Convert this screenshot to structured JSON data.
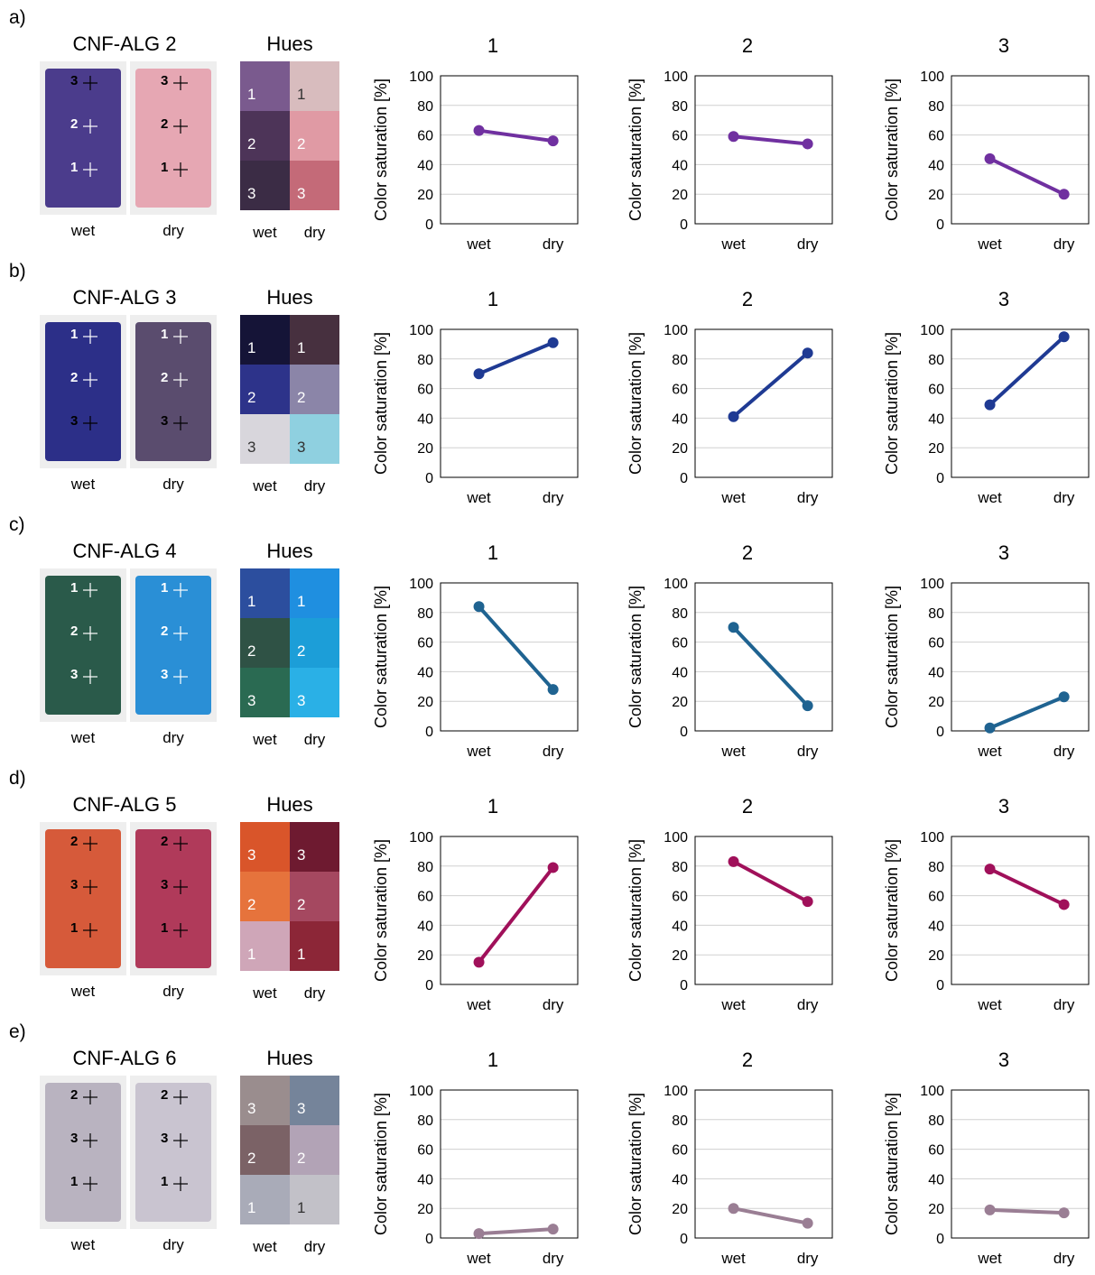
{
  "panels": [
    {
      "label": "a)",
      "title": "CNF-ALG 2",
      "photo_labels": {
        "wet": "wet",
        "dry": "dry"
      },
      "photo_markers": {
        "wet": [
          {
            "n": "3",
            "color": "#000000"
          },
          {
            "n": "2",
            "color": "#ffffff"
          },
          {
            "n": "1",
            "color": "#ffffff"
          }
        ],
        "dry": [
          {
            "n": "3",
            "color": "#000000"
          },
          {
            "n": "2",
            "color": "#000000"
          },
          {
            "n": "1",
            "color": "#000000"
          }
        ]
      },
      "photo_colors": {
        "wet": "#4b3c8c",
        "dry": "#e6a7b3"
      },
      "hues": {
        "title": "Hues",
        "col_labels": [
          "wet",
          "dry"
        ],
        "rows": [
          {
            "wet": {
              "label": "1",
              "color": "#7a5a8e"
            },
            "dry": {
              "label": "1",
              "color": "#d8bcbe"
            }
          },
          {
            "wet": {
              "label": "2",
              "color": "#4d3458"
            },
            "dry": {
              "label": "2",
              "color": "#e09aa4"
            }
          },
          {
            "wet": {
              "label": "3",
              "color": "#3b2c45"
            },
            "dry": {
              "label": "3",
              "color": "#c46a78"
            }
          }
        ]
      }
    },
    {
      "label": "b)",
      "title": "CNF-ALG 3",
      "photo_labels": {
        "wet": "wet",
        "dry": "dry"
      },
      "photo_markers": {
        "wet": [
          {
            "n": "1",
            "color": "#ffffff"
          },
          {
            "n": "2",
            "color": "#ffffff"
          },
          {
            "n": "3",
            "color": "#000000"
          }
        ],
        "dry": [
          {
            "n": "1",
            "color": "#ffffff"
          },
          {
            "n": "2",
            "color": "#ffffff"
          },
          {
            "n": "3",
            "color": "#000000"
          }
        ]
      },
      "photo_colors": {
        "wet": "#2c2f88",
        "dry": "#5a4c6e"
      },
      "hues": {
        "title": "Hues",
        "col_labels": [
          "wet",
          "dry"
        ],
        "rows": [
          {
            "wet": {
              "label": "1",
              "color": "#151437"
            },
            "dry": {
              "label": "1",
              "color": "#47303f"
            }
          },
          {
            "wet": {
              "label": "2",
              "color": "#2d338a"
            },
            "dry": {
              "label": "2",
              "color": "#8b85a8"
            }
          },
          {
            "wet": {
              "label": "3",
              "color": "#d8d6dc"
            },
            "dry": {
              "label": "3",
              "color": "#8fd0e0"
            }
          }
        ]
      }
    },
    {
      "label": "c)",
      "title": "CNF-ALG 4",
      "photo_labels": {
        "wet": "wet",
        "dry": "dry"
      },
      "photo_markers": {
        "wet": [
          {
            "n": "1",
            "color": "#ffffff"
          },
          {
            "n": "2",
            "color": "#ffffff"
          },
          {
            "n": "3",
            "color": "#ffffff"
          }
        ],
        "dry": [
          {
            "n": "1",
            "color": "#ffffff"
          },
          {
            "n": "2",
            "color": "#ffffff"
          },
          {
            "n": "3",
            "color": "#ffffff"
          }
        ]
      },
      "photo_colors": {
        "wet": "#2a5a4a",
        "dry": "#2a8fd6"
      },
      "hues": {
        "title": "Hues",
        "col_labels": [
          "wet",
          "dry"
        ],
        "rows": [
          {
            "wet": {
              "label": "1",
              "color": "#2c4e9e"
            },
            "dry": {
              "label": "1",
              "color": "#1f8fe0"
            }
          },
          {
            "wet": {
              "label": "2",
              "color": "#2f5245"
            },
            "dry": {
              "label": "2",
              "color": "#1c9ed8"
            }
          },
          {
            "wet": {
              "label": "3",
              "color": "#2a6a52"
            },
            "dry": {
              "label": "3",
              "color": "#2ab0e6"
            }
          }
        ]
      }
    },
    {
      "label": "d)",
      "title": "CNF-ALG 5",
      "photo_labels": {
        "wet": "wet",
        "dry": "dry"
      },
      "photo_markers": {
        "wet": [
          {
            "n": "2",
            "color": "#000000"
          },
          {
            "n": "3",
            "color": "#000000"
          },
          {
            "n": "1",
            "color": "#000000"
          }
        ],
        "dry": [
          {
            "n": "2",
            "color": "#000000"
          },
          {
            "n": "3",
            "color": "#000000"
          },
          {
            "n": "1",
            "color": "#000000"
          }
        ]
      },
      "photo_colors": {
        "wet": "#d65a3a",
        "dry": "#b03a5a"
      },
      "hues": {
        "title": "Hues",
        "col_labels": [
          "wet",
          "dry"
        ],
        "rows": [
          {
            "wet": {
              "label": "3",
              "color": "#d9552a"
            },
            "dry": {
              "label": "3",
              "color": "#6e1a30"
            }
          },
          {
            "wet": {
              "label": "2",
              "color": "#e6733c"
            },
            "dry": {
              "label": "2",
              "color": "#a54860"
            }
          },
          {
            "wet": {
              "label": "1",
              "color": "#cfa6b8"
            },
            "dry": {
              "label": "1",
              "color": "#8c2637"
            }
          }
        ]
      }
    },
    {
      "label": "e)",
      "title": "CNF-ALG 6",
      "photo_labels": {
        "wet": "wet",
        "dry": "dry"
      },
      "photo_markers": {
        "wet": [
          {
            "n": "2",
            "color": "#000000"
          },
          {
            "n": "3",
            "color": "#000000"
          },
          {
            "n": "1",
            "color": "#000000"
          }
        ],
        "dry": [
          {
            "n": "2",
            "color": "#000000"
          },
          {
            "n": "3",
            "color": "#000000"
          },
          {
            "n": "1",
            "color": "#000000"
          }
        ]
      },
      "photo_colors": {
        "wet": "#b9b3c0",
        "dry": "#c9c4d0"
      },
      "hues": {
        "title": "Hues",
        "col_labels": [
          "wet",
          "dry"
        ],
        "rows": [
          {
            "wet": {
              "label": "3",
              "color": "#9a8d8e"
            },
            "dry": {
              "label": "3",
              "color": "#75849a"
            }
          },
          {
            "wet": {
              "label": "2",
              "color": "#7b6266"
            },
            "dry": {
              "label": "2",
              "color": "#b2a3b6"
            }
          },
          {
            "wet": {
              "label": "1",
              "color": "#a9abb8"
            },
            "dry": {
              "label": "1",
              "color": "#c2c1c8"
            }
          }
        ]
      }
    }
  ],
  "chart_data": [
    {
      "type": "line",
      "panel": "a)",
      "title": "1",
      "ylabel": "Color saturation [%]",
      "xlabel": "",
      "categories": [
        "wet",
        "dry"
      ],
      "values": [
        63,
        56
      ],
      "ylim": [
        0,
        100
      ],
      "yticks": [
        0,
        20,
        40,
        60,
        80,
        100
      ],
      "grid": true,
      "color": "#7030a0"
    },
    {
      "type": "line",
      "panel": "a)",
      "title": "2",
      "ylabel": "Color saturation [%]",
      "xlabel": "",
      "categories": [
        "wet",
        "dry"
      ],
      "values": [
        59,
        54
      ],
      "ylim": [
        0,
        100
      ],
      "yticks": [
        0,
        20,
        40,
        60,
        80,
        100
      ],
      "grid": true,
      "color": "#7030a0"
    },
    {
      "type": "line",
      "panel": "a)",
      "title": "3",
      "ylabel": "Color saturation [%]",
      "xlabel": "",
      "categories": [
        "wet",
        "dry"
      ],
      "values": [
        44,
        20
      ],
      "ylim": [
        0,
        100
      ],
      "yticks": [
        0,
        20,
        40,
        60,
        80,
        100
      ],
      "grid": true,
      "color": "#7030a0"
    },
    {
      "type": "line",
      "panel": "b)",
      "title": "1",
      "ylabel": "Color saturation [%]",
      "xlabel": "",
      "categories": [
        "wet",
        "dry"
      ],
      "values": [
        70,
        91
      ],
      "ylim": [
        0,
        100
      ],
      "yticks": [
        0,
        20,
        40,
        60,
        80,
        100
      ],
      "grid": true,
      "color": "#1f3a93"
    },
    {
      "type": "line",
      "panel": "b)",
      "title": "2",
      "ylabel": "Color saturation [%]",
      "xlabel": "",
      "categories": [
        "wet",
        "dry"
      ],
      "values": [
        41,
        84
      ],
      "ylim": [
        0,
        100
      ],
      "yticks": [
        0,
        20,
        40,
        60,
        80,
        100
      ],
      "grid": true,
      "color": "#1f3a93"
    },
    {
      "type": "line",
      "panel": "b)",
      "title": "3",
      "ylabel": "Color saturation [%]",
      "xlabel": "",
      "categories": [
        "wet",
        "dry"
      ],
      "values": [
        49,
        95
      ],
      "ylim": [
        0,
        100
      ],
      "yticks": [
        0,
        20,
        40,
        60,
        80,
        100
      ],
      "grid": true,
      "color": "#1f3a93"
    },
    {
      "type": "line",
      "panel": "c)",
      "title": "1",
      "ylabel": "Color saturation [%]",
      "xlabel": "",
      "categories": [
        "wet",
        "dry"
      ],
      "values": [
        84,
        28
      ],
      "ylim": [
        0,
        100
      ],
      "yticks": [
        0,
        20,
        40,
        60,
        80,
        100
      ],
      "grid": true,
      "color": "#1f6391"
    },
    {
      "type": "line",
      "panel": "c)",
      "title": "2",
      "ylabel": "Color saturation [%]",
      "xlabel": "",
      "categories": [
        "wet",
        "dry"
      ],
      "values": [
        70,
        17
      ],
      "ylim": [
        0,
        100
      ],
      "yticks": [
        0,
        20,
        40,
        60,
        80,
        100
      ],
      "grid": true,
      "color": "#1f6391"
    },
    {
      "type": "line",
      "panel": "c)",
      "title": "3",
      "ylabel": "Color saturation [%]",
      "xlabel": "",
      "categories": [
        "wet",
        "dry"
      ],
      "values": [
        2,
        23
      ],
      "ylim": [
        0,
        100
      ],
      "yticks": [
        0,
        20,
        40,
        60,
        80,
        100
      ],
      "grid": true,
      "color": "#1f6391"
    },
    {
      "type": "line",
      "panel": "d)",
      "title": "1",
      "ylabel": "Color saturation [%]",
      "xlabel": "",
      "categories": [
        "wet",
        "dry"
      ],
      "values": [
        15,
        79
      ],
      "ylim": [
        0,
        100
      ],
      "yticks": [
        0,
        20,
        40,
        60,
        80,
        100
      ],
      "grid": true,
      "color": "#a0105a"
    },
    {
      "type": "line",
      "panel": "d)",
      "title": "2",
      "ylabel": "Color saturation [%]",
      "xlabel": "",
      "categories": [
        "wet",
        "dry"
      ],
      "values": [
        83,
        56
      ],
      "ylim": [
        0,
        100
      ],
      "yticks": [
        0,
        20,
        40,
        60,
        80,
        100
      ],
      "grid": true,
      "color": "#a0105a"
    },
    {
      "type": "line",
      "panel": "d)",
      "title": "3",
      "ylabel": "Color saturation [%]",
      "xlabel": "",
      "categories": [
        "wet",
        "dry"
      ],
      "values": [
        78,
        54
      ],
      "ylim": [
        0,
        100
      ],
      "yticks": [
        0,
        20,
        40,
        60,
        80,
        100
      ],
      "grid": true,
      "color": "#a0105a"
    },
    {
      "type": "line",
      "panel": "e)",
      "title": "1",
      "ylabel": "Color saturation [%]",
      "xlabel": "",
      "categories": [
        "wet",
        "dry"
      ],
      "values": [
        3,
        6
      ],
      "ylim": [
        0,
        100
      ],
      "yticks": [
        0,
        20,
        40,
        60,
        80,
        100
      ],
      "grid": true,
      "color": "#9a7e94"
    },
    {
      "type": "line",
      "panel": "e)",
      "title": "2",
      "ylabel": "Color saturation [%]",
      "xlabel": "",
      "categories": [
        "wet",
        "dry"
      ],
      "values": [
        20,
        10
      ],
      "ylim": [
        0,
        100
      ],
      "yticks": [
        0,
        20,
        40,
        60,
        80,
        100
      ],
      "grid": true,
      "color": "#9a7e94"
    },
    {
      "type": "line",
      "panel": "e)",
      "title": "3",
      "ylabel": "Color saturation [%]",
      "xlabel": "",
      "categories": [
        "wet",
        "dry"
      ],
      "values": [
        19,
        17
      ],
      "ylim": [
        0,
        100
      ],
      "yticks": [
        0,
        20,
        40,
        60,
        80,
        100
      ],
      "grid": true,
      "color": "#9a7e94"
    }
  ]
}
